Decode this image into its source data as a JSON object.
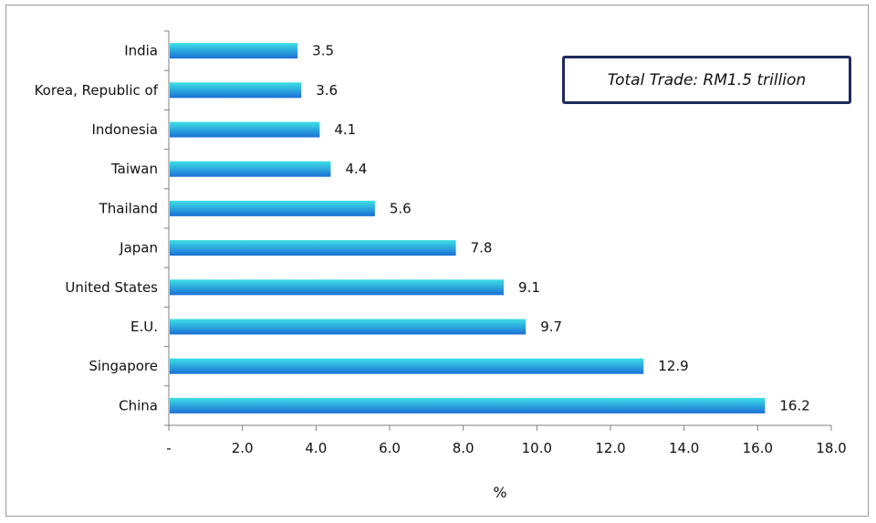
{
  "chart_data": {
    "type": "bar",
    "orientation": "horizontal",
    "categories": [
      "India",
      "Korea, Republic of",
      "Indonesia",
      "Taiwan",
      "Thailand",
      "Japan",
      "United States",
      "E.U.",
      "Singapore",
      "China"
    ],
    "values": [
      3.5,
      3.6,
      4.1,
      4.4,
      5.6,
      7.8,
      9.1,
      9.7,
      12.9,
      16.2
    ],
    "data_labels": [
      "3.5",
      "3.6",
      "4.1",
      "4.4",
      "5.6",
      "7.8",
      "9.1",
      "9.7",
      "12.9",
      "16.2"
    ],
    "xlim": [
      0,
      18
    ],
    "x_ticks": [
      "-",
      "2.0",
      "4.0",
      "6.0",
      "8.0",
      "10.0",
      "12.0",
      "14.0",
      "16.0",
      "18.0"
    ],
    "xlabel": "%",
    "ylabel": "",
    "title": "",
    "annotation": "Total Trade: RM1.5 trillion",
    "grid": false,
    "legend": "none",
    "colors": {
      "bar_top": "#3ee0e6",
      "bar_bottom": "#1a6fd6",
      "annotation_border": "#1f2a5c"
    }
  }
}
